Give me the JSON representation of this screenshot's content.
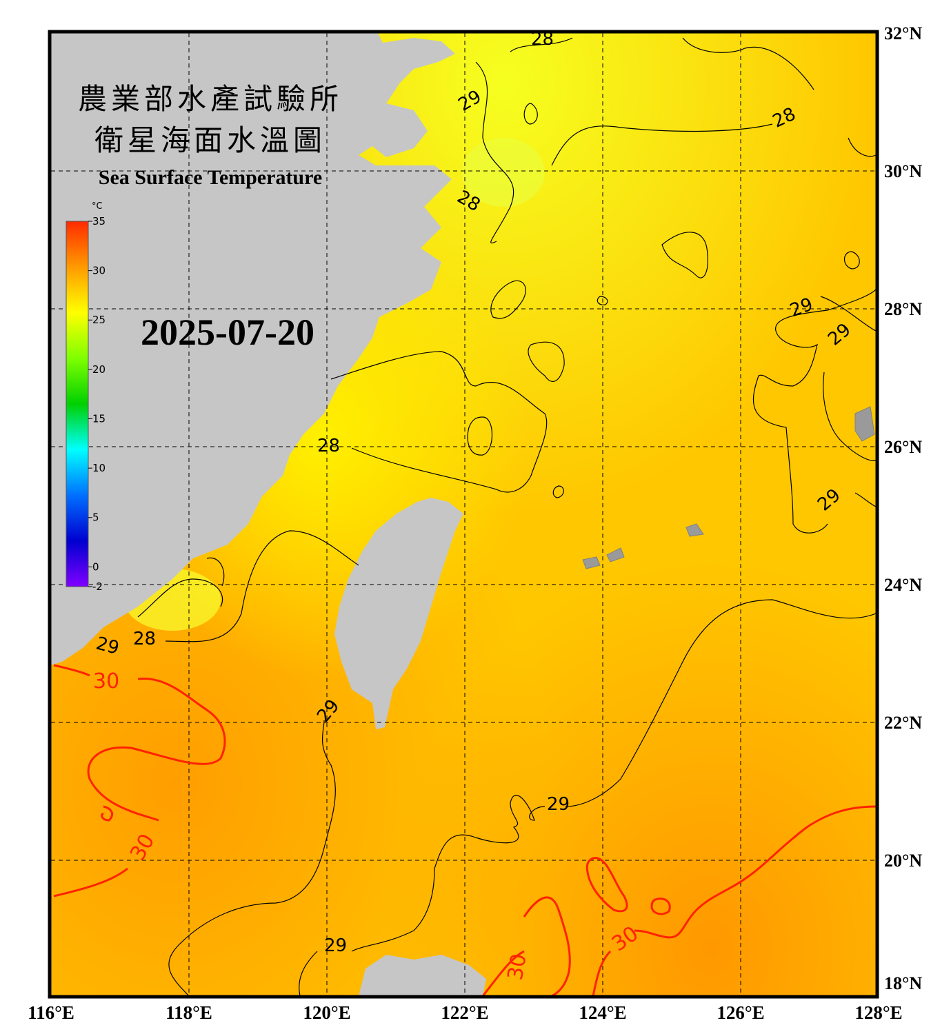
{
  "title": {
    "line1": "農業部水產試驗所",
    "line2": "衛星海面水溫圖",
    "english": "Sea Surface Temperature"
  },
  "date": "2025-07-20",
  "colorbar": {
    "unit": "°C",
    "ticks": [
      "35",
      "30",
      "25",
      "20",
      "15",
      "10",
      "5",
      "0",
      "-2"
    ],
    "colors": [
      "#ff2b00",
      "#ff9a00",
      "#ffff00",
      "#7fff00",
      "#00d000",
      "#00ffff",
      "#0070ff",
      "#0000d0",
      "#8000ff"
    ]
  },
  "axes": {
    "lon_labels": [
      "116°E",
      "118°E",
      "120°E",
      "122°E",
      "124°E",
      "126°E",
      "128°E"
    ],
    "lat_labels": [
      "32°N",
      "30°N",
      "28°N",
      "26°N",
      "24°N",
      "22°N",
      "20°N",
      "18°N"
    ]
  },
  "contour_labels": [
    {
      "text": "28",
      "color": "#000000"
    },
    {
      "text": "29",
      "color": "#000000"
    },
    {
      "text": "28",
      "color": "#000000"
    },
    {
      "text": "28",
      "color": "#000000"
    },
    {
      "text": "29",
      "color": "#000000"
    },
    {
      "text": "29",
      "color": "#000000"
    },
    {
      "text": "28",
      "color": "#000000"
    },
    {
      "text": "29",
      "color": "#000000"
    },
    {
      "text": "29",
      "color": "#000000"
    },
    {
      "text": "28",
      "color": "#000000"
    },
    {
      "text": "29",
      "color": "#000000"
    },
    {
      "text": "30",
      "color": "#ff2200"
    },
    {
      "text": "29",
      "color": "#000000"
    },
    {
      "text": "30",
      "color": "#ff2200"
    },
    {
      "text": "29",
      "color": "#000000"
    },
    {
      "text": "30",
      "color": "#ff2200"
    },
    {
      "text": "29",
      "color": "#000000"
    },
    {
      "text": "30",
      "color": "#ff2200"
    }
  ],
  "colors": {
    "land": "#c6c6c6",
    "frame": "#000000",
    "sea_warm": "#ffa500",
    "sea_mid": "#ffd000",
    "sea_cool": "#ffff20"
  }
}
